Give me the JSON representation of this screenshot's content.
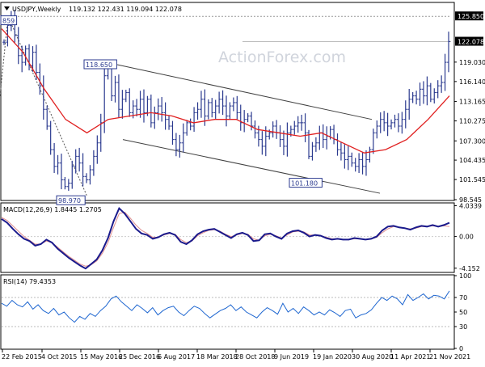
{
  "chart_data": [
    {
      "type": "ohlc",
      "title": "USDJPY,Weekly",
      "ohlc_summary": "119.132 122.431 119.094 122.078",
      "watermark": "ActionForex.com",
      "ylim": [
        98.545,
        127.8
      ],
      "y_ticks": [
        "125.850",
        "122.078",
        "119.030",
        "116.140",
        "113.165",
        "110.275",
        "107.300",
        "104.435",
        "101.545",
        "98.545"
      ],
      "last_price": "122.078",
      "annotations": [
        "859",
        "118.650",
        "98.970",
        "101.180"
      ],
      "series": [
        {
          "name": "price_close",
          "values": [
            122.0,
            124.5,
            125.8,
            123.0,
            120.0,
            119.0,
            121.0,
            118.5,
            120.5,
            117.5,
            115.5,
            112.0,
            109.5,
            106.0,
            103.5,
            104.0,
            101.5,
            100.5,
            101.0,
            103.5,
            105.0,
            104.0,
            102.0,
            101.5,
            103.0,
            105.0,
            107.0,
            110.0,
            117.0,
            118.6,
            114.0,
            116.0,
            112.0,
            113.5,
            114.5,
            111.5,
            112.5,
            112.0,
            113.5,
            111.5,
            113.5,
            110.0,
            111.5,
            112.5,
            111.5,
            110.5,
            109.5,
            107.5,
            106.0,
            107.0,
            108.5,
            110.0,
            109.5,
            111.5,
            112.0,
            113.5,
            111.0,
            113.0,
            111.5,
            112.5,
            113.5,
            112.5,
            111.0,
            112.5,
            113.0,
            111.5,
            110.0,
            110.5,
            111.0,
            109.5,
            108.5,
            107.5,
            106.5,
            108.0,
            108.5,
            109.5,
            108.5,
            107.5,
            106.5,
            108.5,
            109.0,
            109.5,
            110.0,
            110.0,
            108.5,
            105.0,
            106.5,
            107.0,
            108.5,
            107.5,
            108.0,
            109.0,
            107.5,
            106.0,
            105.5,
            104.5,
            105.0,
            104.0,
            103.5,
            104.5,
            103.5,
            104.5,
            106.0,
            108.5,
            109.5,
            110.5,
            110.0,
            109.5,
            110.0,
            110.5,
            109.5,
            110.5,
            112.0,
            113.5,
            114.0,
            113.5,
            115.0,
            114.0,
            115.5,
            113.5,
            114.5,
            115.5,
            116.0,
            119.0,
            122.1
          ]
        },
        {
          "name": "MA",
          "values": [
            124.0,
            120.5,
            115.0,
            110.5,
            108.5,
            110.5,
            111.0,
            111.5,
            111.0,
            110.0,
            110.5,
            110.5,
            109.0,
            108.5,
            108.0,
            108.5,
            107.0,
            105.5,
            106.0,
            107.5,
            110.5,
            114.0
          ]
        }
      ],
      "channel": {
        "upper": [
          [
            118.65,
            110.5
          ]
        ],
        "lower": [
          [
            107.5,
            99.5
          ]
        ]
      }
    },
    {
      "type": "line",
      "title": "MACD(12,26,9) 1.8445 1.2705",
      "ylim": [
        -4.6,
        4.3
      ],
      "y_ticks": [
        "4.0339",
        "0.00",
        "-4.152"
      ],
      "series": [
        {
          "name": "macd",
          "values": [
            2.3,
            1.8,
            1.0,
            0.3,
            -0.3,
            -0.6,
            -1.2,
            -1.0,
            -0.4,
            -0.8,
            -1.6,
            -2.2,
            -2.8,
            -3.3,
            -3.8,
            -4.2,
            -3.6,
            -3.0,
            -1.8,
            -0.2,
            2.0,
            3.7,
            3.0,
            2.0,
            1.0,
            0.4,
            0.2,
            -0.3,
            -0.1,
            0.3,
            0.5,
            0.2,
            -0.7,
            -1.0,
            -0.5,
            0.3,
            0.7,
            0.9,
            1.0,
            0.6,
            0.2,
            -0.2,
            0.3,
            0.5,
            0.2,
            -0.6,
            -0.5,
            0.3,
            0.4,
            0.0,
            -0.3,
            0.4,
            0.7,
            0.8,
            0.5,
            0.0,
            0.2,
            0.1,
            -0.2,
            -0.4,
            -0.3,
            -0.4,
            -0.4,
            -0.2,
            -0.3,
            -0.4,
            -0.3,
            0.0,
            0.8,
            1.3,
            1.4,
            1.2,
            1.1,
            0.9,
            1.2,
            1.4,
            1.3,
            1.5,
            1.3,
            1.5,
            1.8
          ]
        },
        {
          "name": "signal",
          "values": [
            2.5,
            2.1,
            1.4,
            0.7,
            0.0,
            -0.5,
            -1.0,
            -1.0,
            -0.6,
            -0.8,
            -1.4,
            -2.0,
            -2.6,
            -3.1,
            -3.6,
            -3.9,
            -3.7,
            -3.2,
            -2.2,
            -0.8,
            1.2,
            3.0,
            3.2,
            2.4,
            1.5,
            0.8,
            0.4,
            -0.1,
            -0.1,
            0.2,
            0.4,
            0.3,
            -0.4,
            -0.8,
            -0.6,
            0.1,
            0.5,
            0.8,
            0.9,
            0.7,
            0.3,
            0.0,
            0.2,
            0.4,
            0.3,
            -0.3,
            -0.5,
            0.1,
            0.3,
            0.1,
            -0.2,
            0.2,
            0.6,
            0.7,
            0.6,
            0.2,
            0.2,
            0.1,
            -0.1,
            -0.3,
            -0.3,
            -0.4,
            -0.4,
            -0.3,
            -0.3,
            -0.4,
            -0.3,
            -0.1,
            0.5,
            1.0,
            1.3,
            1.2,
            1.1,
            1.0,
            1.1,
            1.3,
            1.3,
            1.4,
            1.3,
            1.4,
            1.3
          ]
        }
      ]
    },
    {
      "type": "line",
      "title": "RSI(14) 79.4353",
      "ylim": [
        0,
        100
      ],
      "y_ticks": [
        "100",
        "70",
        "50",
        "30",
        "0"
      ],
      "series": [
        {
          "name": "rsi",
          "values": [
            62,
            58,
            66,
            60,
            57,
            64,
            54,
            60,
            52,
            48,
            55,
            46,
            50,
            42,
            36,
            44,
            40,
            48,
            44,
            52,
            58,
            68,
            72,
            64,
            58,
            52,
            60,
            55,
            49,
            56,
            46,
            52,
            56,
            58,
            50,
            45,
            52,
            58,
            55,
            48,
            42,
            47,
            52,
            55,
            60,
            52,
            57,
            50,
            46,
            42,
            50,
            56,
            52,
            47,
            62,
            50,
            55,
            48,
            57,
            52,
            46,
            50,
            46,
            53,
            49,
            44,
            52,
            54,
            42,
            46,
            48,
            53,
            62,
            70,
            66,
            72,
            68,
            60,
            74,
            66,
            70,
            75,
            68,
            73,
            72,
            68,
            79
          ]
        }
      ]
    }
  ],
  "x_labels": [
    "22 Feb 2015",
    "4 Oct 2015",
    "15 May 2016",
    "25 Dec 2016",
    "6 Aug 2017",
    "18 Mar 2018",
    "28 Oct 2018",
    "9 Jun 2019",
    "19 Jan 2020",
    "30 Aug 2020",
    "11 Apr 2021",
    "21 Nov 2021"
  ],
  "colors": {
    "price": "#2b3a8f",
    "ma": "#e02020",
    "macd": "#1a1a8c",
    "signal": "#e09090",
    "rsi": "#1e66d0",
    "channel": "#404040"
  }
}
